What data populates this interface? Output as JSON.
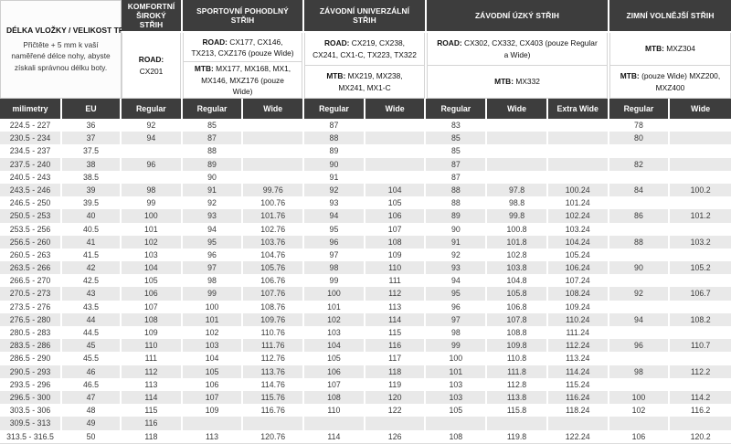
{
  "header": {
    "left": {
      "title": "DÉLKA VLOŽKY / VELIKOST TRETRY",
      "description": "Přičtěte + 5 mm k vaší naměřené délce nohy, abyste získali správnou délku boty."
    },
    "categories": [
      {
        "title": "KOMFORTNÍ ŠIROKÝ STŘIH",
        "rows": [
          {
            "bold": "ROAD:",
            "text": "CX201"
          }
        ]
      },
      {
        "title": "SPORTOVNÍ POHODLNÝ STŘIH",
        "rows": [
          {
            "bold": "ROAD:",
            "text": "CX177, CX146, TX213, CXZ176 (pouze Wide)"
          },
          {
            "bold": "MTB:",
            "text": "MX177, MX168, MX1, MX146, MXZ176 (pouze Wide)"
          }
        ]
      },
      {
        "title": "ZÁVODNÍ UNIVERZÁLNÍ STŘIH",
        "rows": [
          {
            "bold": "ROAD:",
            "text": "CX219, CX238, CX241, CX1-C, TX223, TX322"
          },
          {
            "bold": "MTB:",
            "text": "MX219, MX238, MX241, MX1-C"
          }
        ]
      },
      {
        "title": "ZÁVODNÍ ÚZKÝ STŘIH",
        "rows": [
          {
            "bold": "ROAD:",
            "text": "CX302, CX332, CX403 (pouze Regular a Wide)"
          },
          {
            "bold": "MTB:",
            "text": "MX332"
          }
        ]
      },
      {
        "title": "ZIMNÍ VOLNĚJŠÍ STŘIH",
        "rows": [
          {
            "bold": "MTB:",
            "text": "MXZ304"
          },
          {
            "bold": "MTB:",
            "text": "(pouze Wide) MXZ200, MXZ400"
          }
        ]
      }
    ]
  },
  "table": {
    "columns": [
      "milimetry",
      "EU",
      "Regular",
      "Regular",
      "Wide",
      "Regular",
      "Wide",
      "Regular",
      "Wide",
      "Extra Wide",
      "Regular",
      "Wide"
    ],
    "rows": [
      [
        "224.5 - 227",
        "36",
        "92",
        "85",
        "",
        "87",
        "",
        "83",
        "",
        "",
        "78",
        ""
      ],
      [
        "230.5 - 234",
        "37",
        "94",
        "87",
        "",
        "88",
        "",
        "85",
        "",
        "",
        "80",
        ""
      ],
      [
        "234.5 - 237",
        "37.5",
        "",
        "88",
        "",
        "89",
        "",
        "85",
        "",
        "",
        "",
        ""
      ],
      [
        "237.5 - 240",
        "38",
        "96",
        "89",
        "",
        "90",
        "",
        "87",
        "",
        "",
        "82",
        ""
      ],
      [
        "240.5 - 243",
        "38.5",
        "",
        "90",
        "",
        "91",
        "",
        "87",
        "",
        "",
        "",
        ""
      ],
      [
        "243.5 - 246",
        "39",
        "98",
        "91",
        "99.76",
        "92",
        "104",
        "88",
        "97.8",
        "100.24",
        "84",
        "100.2"
      ],
      [
        "246.5 - 250",
        "39.5",
        "99",
        "92",
        "100.76",
        "93",
        "105",
        "88",
        "98.8",
        "101.24",
        "",
        ""
      ],
      [
        "250.5 - 253",
        "40",
        "100",
        "93",
        "101.76",
        "94",
        "106",
        "89",
        "99.8",
        "102.24",
        "86",
        "101.2"
      ],
      [
        "253.5 - 256",
        "40.5",
        "101",
        "94",
        "102.76",
        "95",
        "107",
        "90",
        "100.8",
        "103.24",
        "",
        ""
      ],
      [
        "256.5 - 260",
        "41",
        "102",
        "95",
        "103.76",
        "96",
        "108",
        "91",
        "101.8",
        "104.24",
        "88",
        "103.2"
      ],
      [
        "260.5 - 263",
        "41.5",
        "103",
        "96",
        "104.76",
        "97",
        "109",
        "92",
        "102.8",
        "105.24",
        "",
        ""
      ],
      [
        "263.5 - 266",
        "42",
        "104",
        "97",
        "105.76",
        "98",
        "110",
        "93",
        "103.8",
        "106.24",
        "90",
        "105.2"
      ],
      [
        "266.5 - 270",
        "42.5",
        "105",
        "98",
        "106.76",
        "99",
        "111",
        "94",
        "104.8",
        "107.24",
        "",
        ""
      ],
      [
        "270.5 - 273",
        "43",
        "106",
        "99",
        "107.76",
        "100",
        "112",
        "95",
        "105.8",
        "108.24",
        "92",
        "106.7"
      ],
      [
        "273.5 - 276",
        "43.5",
        "107",
        "100",
        "108.76",
        "101",
        "113",
        "96",
        "106.8",
        "109.24",
        "",
        ""
      ],
      [
        "276.5 - 280",
        "44",
        "108",
        "101",
        "109.76",
        "102",
        "114",
        "97",
        "107.8",
        "110.24",
        "94",
        "108.2"
      ],
      [
        "280.5 - 283",
        "44.5",
        "109",
        "102",
        "110.76",
        "103",
        "115",
        "98",
        "108.8",
        "111.24",
        "",
        ""
      ],
      [
        "283.5 - 286",
        "45",
        "110",
        "103",
        "111.76",
        "104",
        "116",
        "99",
        "109.8",
        "112.24",
        "96",
        "110.7"
      ],
      [
        "286.5 - 290",
        "45.5",
        "111",
        "104",
        "112.76",
        "105",
        "117",
        "100",
        "110.8",
        "113.24",
        "",
        ""
      ],
      [
        "290.5 - 293",
        "46",
        "112",
        "105",
        "113.76",
        "106",
        "118",
        "101",
        "111.8",
        "114.24",
        "98",
        "112.2"
      ],
      [
        "293.5 - 296",
        "46.5",
        "113",
        "106",
        "114.76",
        "107",
        "119",
        "103",
        "112.8",
        "115.24",
        "",
        ""
      ],
      [
        "296.5 - 300",
        "47",
        "114",
        "107",
        "115.76",
        "108",
        "120",
        "103",
        "113.8",
        "116.24",
        "100",
        "114.2"
      ],
      [
        "303.5 - 306",
        "48",
        "115",
        "109",
        "116.76",
        "110",
        "122",
        "105",
        "115.8",
        "118.24",
        "102",
        "116.2"
      ],
      [
        "309.5 - 313",
        "49",
        "116",
        "",
        "",
        "",
        "",
        "",
        "",
        "",
        "",
        ""
      ],
      [
        "313.5 - 316.5",
        "50",
        "118",
        "113",
        "120.76",
        "114",
        "126",
        "108",
        "119.8",
        "122.24",
        "106",
        "120.2"
      ]
    ]
  },
  "colors": {
    "header_bg": "#3d3d3d",
    "stripe": "#e9e9e9",
    "border": "#d4d4d4"
  }
}
